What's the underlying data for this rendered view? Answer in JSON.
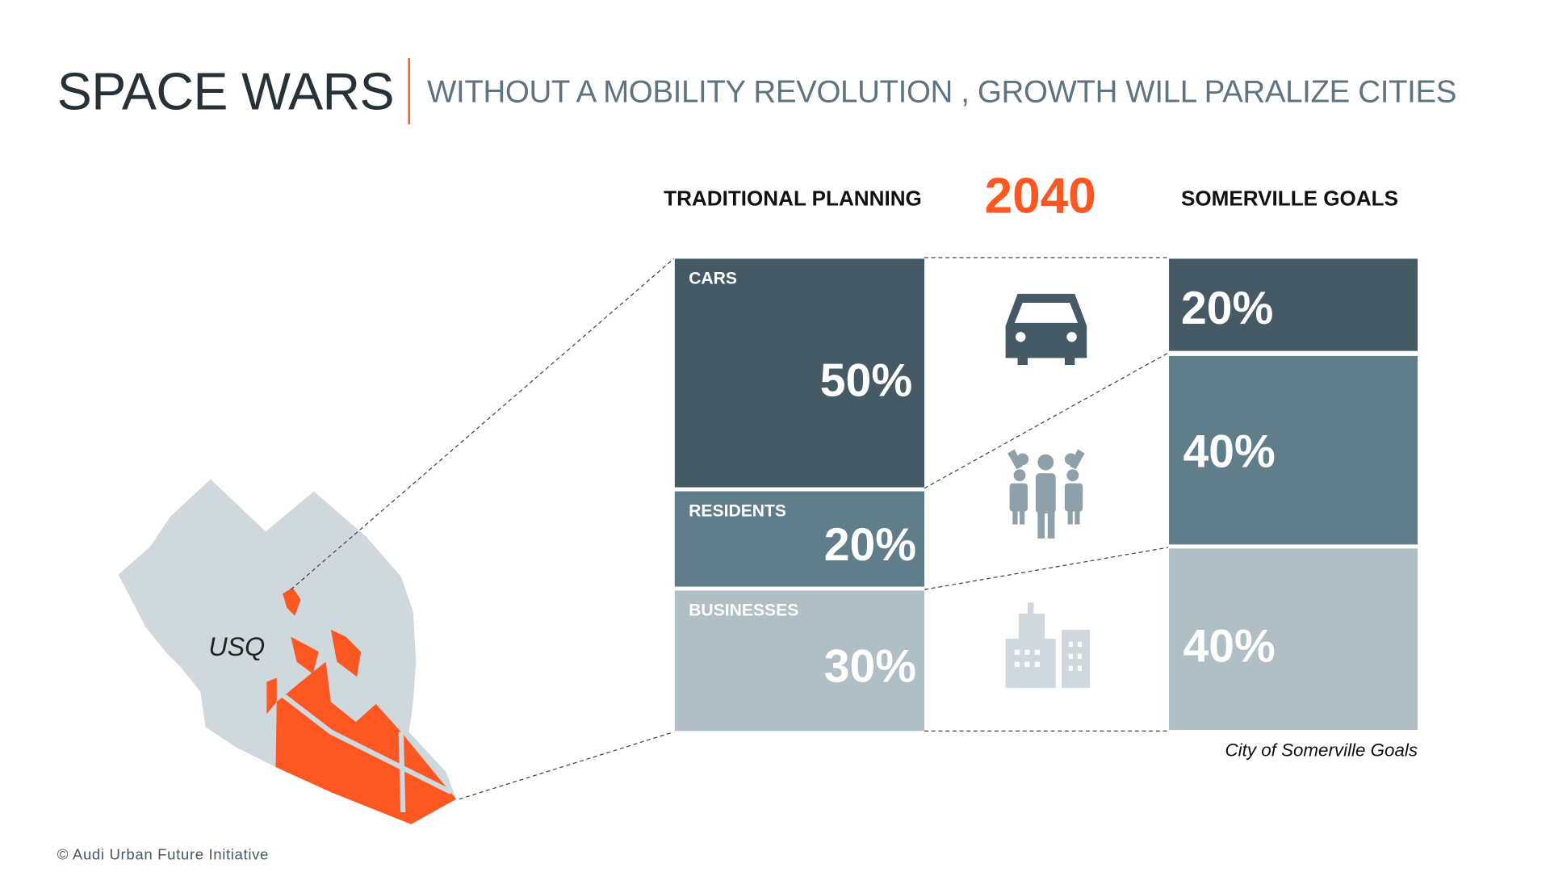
{
  "header": {
    "title": "SPACE WARS",
    "subtitle": "WITHOUT A MOBILITY REVOLUTION , GROWTH WILL PARALIZE CITIES"
  },
  "columns": {
    "left": "TRADITIONAL PLANNING",
    "year": "2040",
    "right": "SOMERVILLE GOALS"
  },
  "traditional": [
    {
      "label": "CARS",
      "value": "50%",
      "color": "#465a65"
    },
    {
      "label": "RESIDENTS",
      "value": "20%",
      "color": "#607d8a"
    },
    {
      "label": "BUSINESSES",
      "value": "30%",
      "color": "#b0bec5"
    }
  ],
  "somerville": [
    {
      "value": "20%",
      "color": "#465a65"
    },
    {
      "value": "40%",
      "color": "#607d8a"
    },
    {
      "value": "40%",
      "color": "#b0bec5"
    }
  ],
  "icons": [
    "car-icon",
    "people-icon",
    "buildings-icon"
  ],
  "map": {
    "label": "USQ",
    "base_color": "#cfd8dc",
    "highlight_color": "#ff5722"
  },
  "source": "City of Somerville Goals",
  "copyright": "© Audi Urban Future Initiative"
}
